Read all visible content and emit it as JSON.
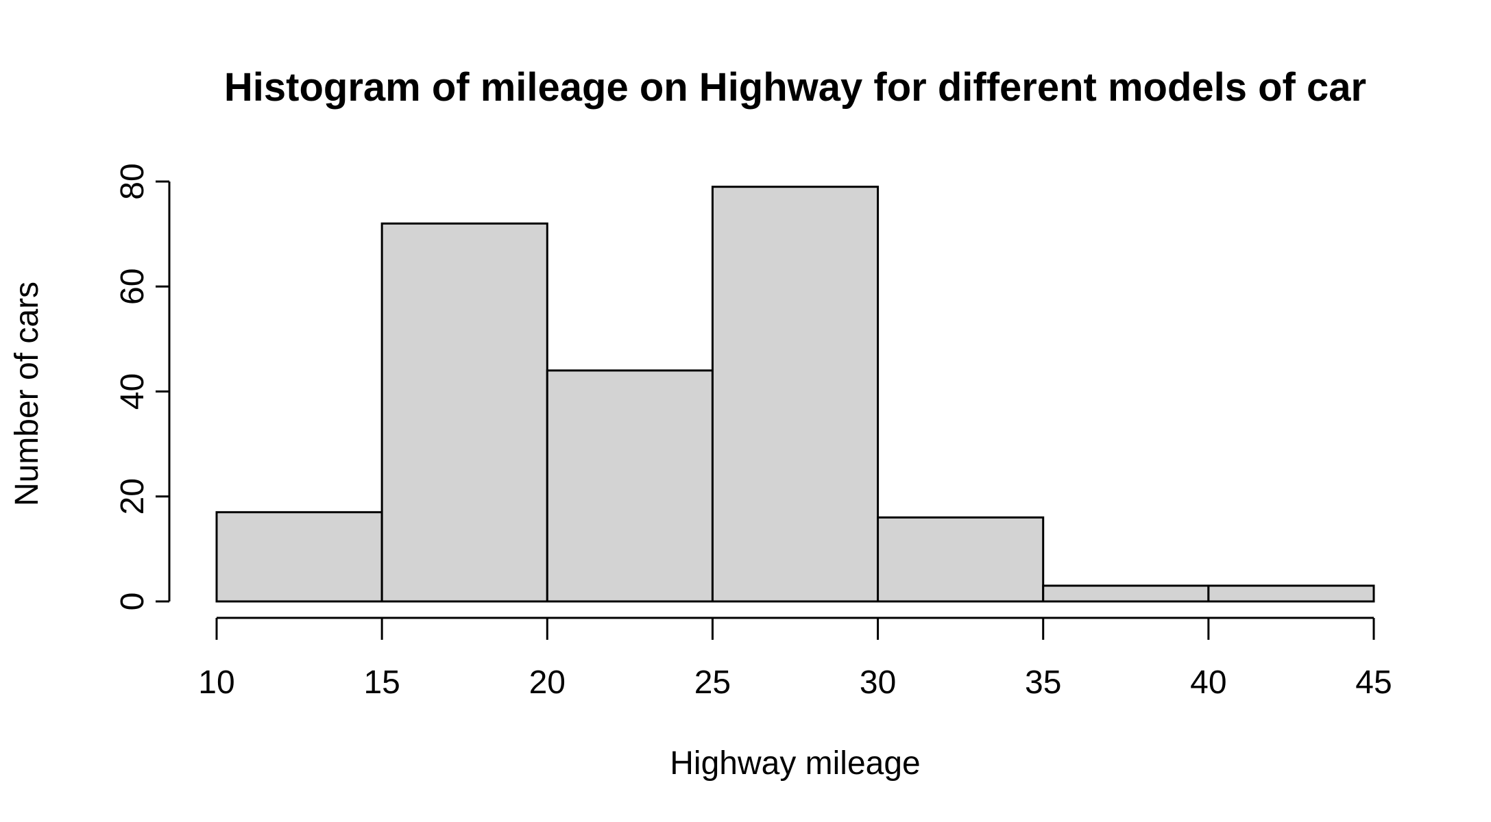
{
  "chart_data": {
    "type": "bar",
    "title": "Histogram of mileage on Highway for different models of car",
    "xlabel": "Highway mileage",
    "ylabel": "Number of cars",
    "bins": [
      {
        "from": 10,
        "to": 15,
        "count": 17
      },
      {
        "from": 15,
        "to": 20,
        "count": 72
      },
      {
        "from": 20,
        "to": 25,
        "count": 44
      },
      {
        "from": 25,
        "to": 30,
        "count": 79
      },
      {
        "from": 30,
        "to": 35,
        "count": 16
      },
      {
        "from": 35,
        "to": 40,
        "count": 3
      },
      {
        "from": 40,
        "to": 45,
        "count": 3
      }
    ],
    "x_ticks": [
      "10",
      "15",
      "20",
      "25",
      "30",
      "35",
      "40",
      "45"
    ],
    "y_ticks": [
      "0",
      "20",
      "40",
      "60",
      "80"
    ],
    "xlim": [
      10,
      45
    ],
    "ylim": [
      0,
      80
    ],
    "grid": false,
    "bar_fill": "#d3d3d3"
  }
}
